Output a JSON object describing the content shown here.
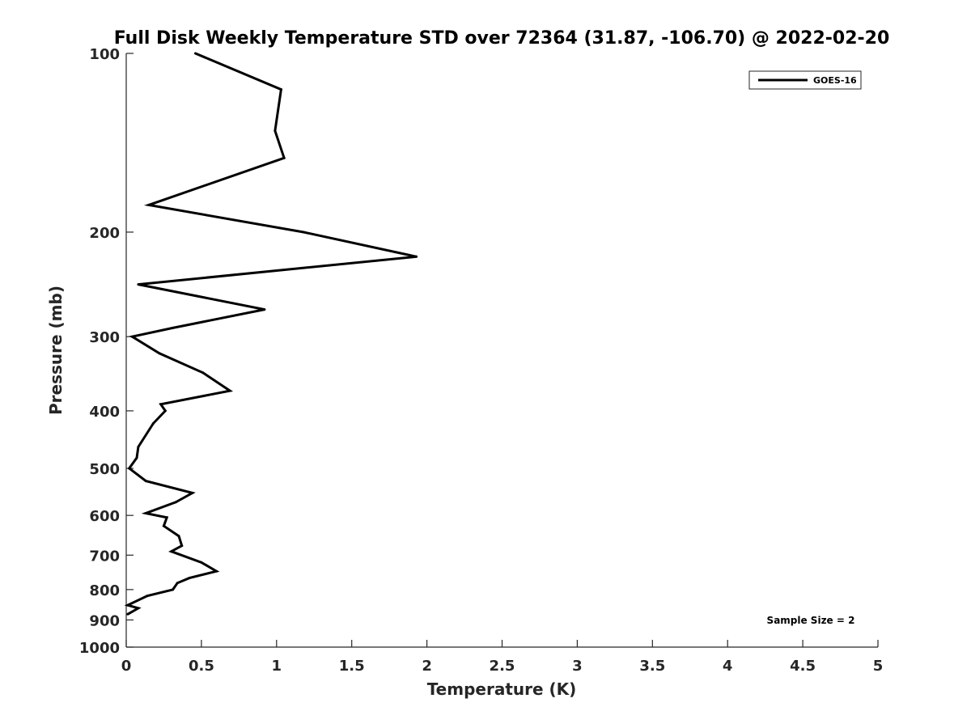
{
  "chart_data": {
    "type": "line",
    "title": "Full Disk Weekly Temperature STD over 72364 (31.87, -106.70) @ 2022-02-20",
    "xlabel": "Temperature (K)",
    "ylabel": "Pressure (mb)",
    "xlim": [
      0,
      5
    ],
    "ylim": [
      1000,
      100
    ],
    "y_scale": "log",
    "y_reversed": true,
    "x_ticks": [
      "0",
      "0.5",
      "1",
      "1.5",
      "2",
      "2.5",
      "3",
      "3.5",
      "4",
      "4.5",
      "5"
    ],
    "y_ticks": [
      "100",
      "200",
      "300",
      "400",
      "500",
      "600",
      "700",
      "800",
      "900",
      "1000"
    ],
    "grid": false,
    "legend_position": "top-right",
    "annotation": "Sample Size = 2",
    "series": [
      {
        "name": "GOES-16",
        "color": "#000000",
        "x": [
          0.46,
          1.03,
          0.99,
          1.05,
          0.15,
          1.18,
          1.93,
          0.08,
          0.92,
          0.31,
          0.04,
          0.22,
          0.51,
          0.69,
          0.23,
          0.26,
          0.18,
          0.08,
          0.07,
          0.02,
          0.13,
          0.44,
          0.33,
          0.13,
          0.27,
          0.25,
          0.35,
          0.37,
          0.3,
          0.5,
          0.6,
          0.42,
          0.34,
          0.31,
          0.14,
          0.01,
          0.08,
          0.01
        ],
        "y": [
          100,
          115,
          135,
          150,
          180,
          200,
          220,
          245,
          270,
          290,
          300,
          320,
          345,
          370,
          390,
          400,
          420,
          460,
          480,
          500,
          525,
          550,
          570,
          595,
          605,
          625,
          650,
          675,
          690,
          720,
          745,
          765,
          780,
          800,
          820,
          850,
          860,
          880
        ]
      }
    ]
  }
}
